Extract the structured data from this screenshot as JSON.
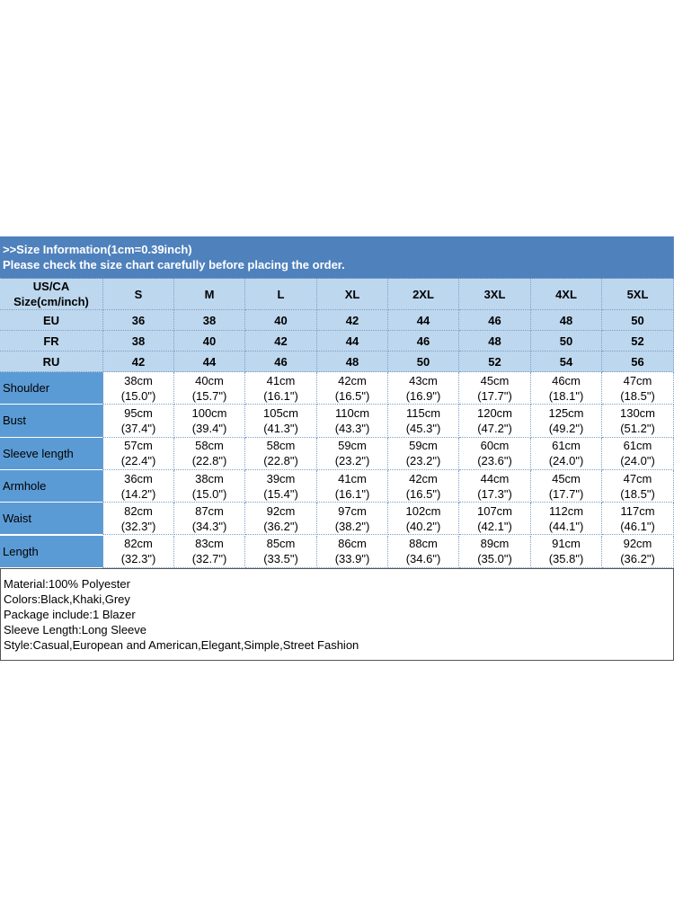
{
  "header": {
    "lines": [
      ">>Size Information(1cm=0.39inch)",
      "Please check the size chart carefully before placing the order."
    ]
  },
  "size_table": {
    "corner": [
      "US/CA",
      "Size(cm/inch)"
    ],
    "sizes": [
      "S",
      "M",
      "L",
      "XL",
      "2XL",
      "3XL",
      "4XL",
      "5XL"
    ],
    "regions": [
      {
        "label": "EU",
        "values": [
          "36",
          "38",
          "40",
          "42",
          "44",
          "46",
          "48",
          "50"
        ]
      },
      {
        "label": "FR",
        "values": [
          "38",
          "40",
          "42",
          "44",
          "46",
          "48",
          "50",
          "52"
        ]
      },
      {
        "label": "RU",
        "values": [
          "42",
          "44",
          "46",
          "48",
          "50",
          "52",
          "54",
          "56"
        ]
      }
    ]
  },
  "measurements": [
    {
      "label": "Shoulder",
      "cells": [
        [
          "38cm",
          "(15.0\")"
        ],
        [
          "40cm",
          "(15.7\")"
        ],
        [
          "41cm",
          "(16.1\")"
        ],
        [
          "42cm",
          "(16.5\")"
        ],
        [
          "43cm",
          "(16.9\")"
        ],
        [
          "45cm",
          "(17.7\")"
        ],
        [
          "46cm",
          "(18.1\")"
        ],
        [
          "47cm",
          "(18.5\")"
        ]
      ]
    },
    {
      "label": "Bust",
      "cells": [
        [
          "95cm",
          "(37.4\")"
        ],
        [
          "100cm",
          "(39.4\")"
        ],
        [
          "105cm",
          "(41.3\")"
        ],
        [
          "110cm",
          "(43.3\")"
        ],
        [
          "115cm",
          "(45.3\")"
        ],
        [
          "120cm",
          "(47.2\")"
        ],
        [
          "125cm",
          "(49.2\")"
        ],
        [
          "130cm",
          "(51.2\")"
        ]
      ]
    },
    {
      "label": "Sleeve length",
      "cells": [
        [
          "57cm",
          "(22.4\")"
        ],
        [
          "58cm",
          "(22.8\")"
        ],
        [
          "58cm",
          "(22.8\")"
        ],
        [
          "59cm",
          "(23.2\")"
        ],
        [
          "59cm",
          "(23.2\")"
        ],
        [
          "60cm",
          "(23.6\")"
        ],
        [
          "61cm",
          "(24.0\")"
        ],
        [
          "61cm",
          "(24.0\")"
        ]
      ]
    },
    {
      "label": "Armhole",
      "cells": [
        [
          "36cm",
          "(14.2\")"
        ],
        [
          "38cm",
          "(15.0\")"
        ],
        [
          "39cm",
          "(15.4\")"
        ],
        [
          "41cm",
          "(16.1\")"
        ],
        [
          "42cm",
          "(16.5\")"
        ],
        [
          "44cm",
          "(17.3\")"
        ],
        [
          "45cm",
          "(17.7\")"
        ],
        [
          "47cm",
          "(18.5\")"
        ]
      ]
    },
    {
      "label": "Waist",
      "cells": [
        [
          "82cm",
          "(32.3\")"
        ],
        [
          "87cm",
          "(34.3\")"
        ],
        [
          "92cm",
          "(36.2\")"
        ],
        [
          "97cm",
          "(38.2\")"
        ],
        [
          "102cm",
          "(40.2\")"
        ],
        [
          "107cm",
          "(42.1\")"
        ],
        [
          "112cm",
          "(44.1\")"
        ],
        [
          "117cm",
          "(46.1\")"
        ]
      ]
    },
    {
      "label": "Length",
      "cells": [
        [
          "82cm",
          "(32.3\")"
        ],
        [
          "83cm",
          "(32.7\")"
        ],
        [
          "85cm",
          "(33.5\")"
        ],
        [
          "86cm",
          "(33.9\")"
        ],
        [
          "88cm",
          "(34.6\")"
        ],
        [
          "89cm",
          "(35.0\")"
        ],
        [
          "91cm",
          "(35.8\")"
        ],
        [
          "92cm",
          "(36.2\")"
        ]
      ]
    }
  ],
  "notes": [
    "Material:100% Polyester",
    "Colors:Black,Khaki,Grey",
    "Package include:1 Blazer",
    "Sleeve Length:Long Sleeve",
    "Style:Casual,European and American,Elegant,Simple,Street Fashion"
  ]
}
